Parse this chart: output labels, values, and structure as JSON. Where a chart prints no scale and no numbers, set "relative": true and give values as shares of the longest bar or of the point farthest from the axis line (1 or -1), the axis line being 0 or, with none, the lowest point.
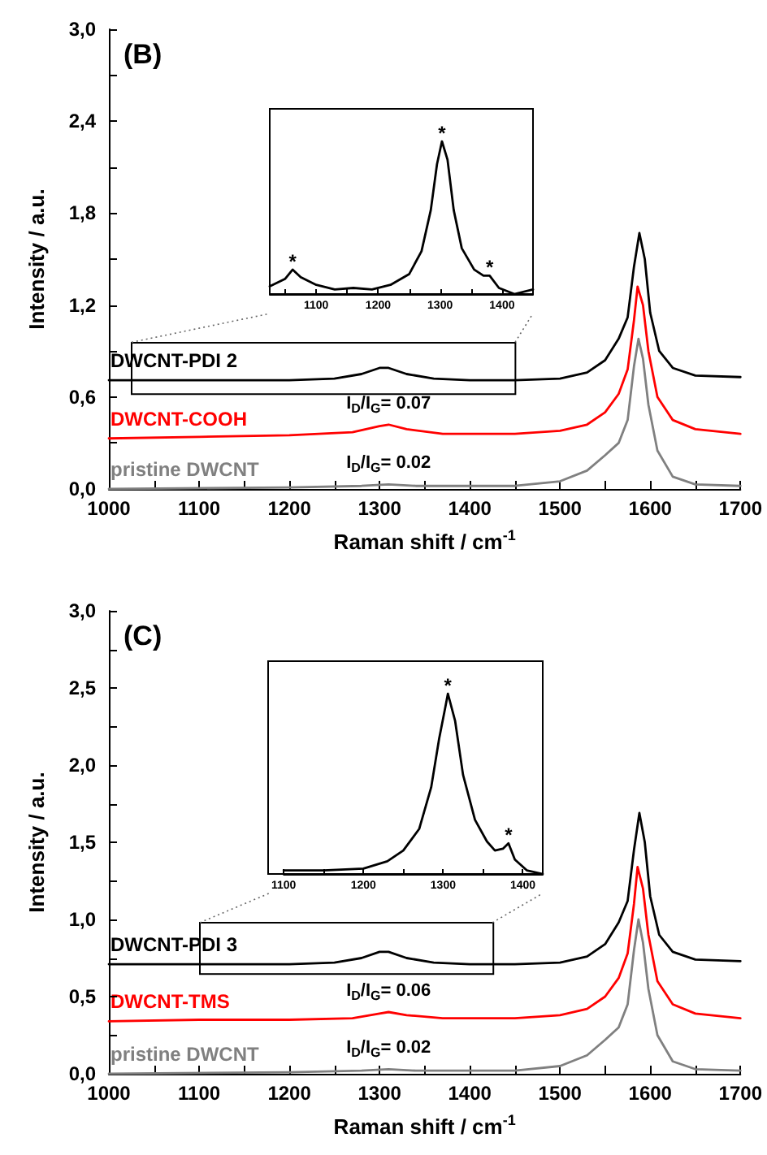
{
  "chart_data": [
    {
      "type": "line",
      "title": "(B)",
      "xlabel": "Raman shift / cm$^{-1}$",
      "ylabel": "Intensity / a.u.",
      "xlim": [
        1000,
        1700
      ],
      "xticks": [
        1000,
        {
          "value": 1050,
          "label": null
        },
        1100,
        {
          "value": 1150,
          "label": null
        },
        1200,
        {
          "value": 1250,
          "label": null
        },
        1300,
        {
          "value": 1350,
          "label": null
        },
        1400,
        {
          "value": 1450,
          "label": null
        },
        1500,
        {
          "value": 1550,
          "label": null
        },
        1600,
        {
          "value": 1650,
          "label": null
        },
        1700
      ],
      "ylim": [
        0,
        3
      ],
      "yticks": [
        {
          "value": 0,
          "label": "0,0"
        },
        {
          "value": 0.3,
          "label": null
        },
        {
          "value": 0.6,
          "label": "0,6"
        },
        {
          "value": 0.9,
          "label": null
        },
        {
          "value": 1.2,
          "label": "1,2"
        },
        {
          "value": 1.5,
          "label": null
        },
        {
          "value": 1.8,
          "label": "1,8"
        },
        {
          "value": 2.1,
          "label": null
        },
        {
          "value": 2.4,
          "label": "2,4"
        },
        {
          "value": 2.7,
          "label": null
        },
        {
          "value": 3,
          "label": "3,0"
        }
      ],
      "grid": false,
      "legend": false,
      "marker": "none",
      "line_style": "solid",
      "series": [
        {
          "name": "DWCNT-PDI 2",
          "color": "#000000",
          "x": [
            1000,
            1100,
            1200,
            1250,
            1280,
            1300,
            1310,
            1330,
            1360,
            1400,
            1450,
            1500,
            1530,
            1550,
            1565,
            1575,
            1582,
            1588,
            1594,
            1600,
            1610,
            1625,
            1650,
            1700
          ],
          "values": [
            0.71,
            0.71,
            0.71,
            0.72,
            0.75,
            0.79,
            0.79,
            0.75,
            0.72,
            0.71,
            0.71,
            0.72,
            0.76,
            0.84,
            0.98,
            1.12,
            1.45,
            1.67,
            1.5,
            1.15,
            0.9,
            0.79,
            0.74,
            0.73
          ]
        },
        {
          "name": "DWCNT-COOH",
          "color": "#ff0000",
          "x": [
            1000,
            1100,
            1200,
            1270,
            1300,
            1310,
            1330,
            1370,
            1450,
            1500,
            1530,
            1550,
            1565,
            1575,
            1582,
            1586,
            1592,
            1598,
            1608,
            1625,
            1650,
            1700
          ],
          "values": [
            0.33,
            0.34,
            0.35,
            0.37,
            0.41,
            0.42,
            0.39,
            0.36,
            0.36,
            0.38,
            0.42,
            0.5,
            0.62,
            0.78,
            1.1,
            1.32,
            1.2,
            0.9,
            0.6,
            0.45,
            0.39,
            0.36
          ]
        },
        {
          "name": "pristine DWCNT",
          "color": "#808080",
          "x": [
            1000,
            1200,
            1280,
            1310,
            1340,
            1450,
            1500,
            1530,
            1550,
            1565,
            1575,
            1582,
            1587,
            1592,
            1598,
            1608,
            1625,
            1650,
            1700
          ],
          "values": [
            0,
            0.01,
            0.02,
            0.03,
            0.02,
            0.02,
            0.05,
            0.12,
            0.22,
            0.3,
            0.45,
            0.8,
            0.98,
            0.85,
            0.55,
            0.25,
            0.08,
            0.03,
            0.02
          ]
        }
      ],
      "annotations": [
        {
          "text": "I$_{D}$/I$_{G}$= 0.07",
          "x": 1310,
          "y": 0.42
        },
        {
          "text": "I$_{D}$/I$_{G}$= 0.02",
          "x": 1310,
          "y": 0.03
        }
      ]
    },
    {
      "type": "line",
      "xlim": [
        1025,
        1450
      ],
      "xticks": [
        {
          "value": 1050,
          "label": null
        },
        1100,
        {
          "value": 1150,
          "label": null
        },
        1200,
        {
          "value": 1250,
          "label": null
        },
        1300,
        {
          "value": 1350,
          "label": null
        },
        1400
      ],
      "relative": true,
      "tick_labels": "x",
      "marker": "none",
      "line_style": "solid",
      "series": [
        {
          "color": "#000000",
          "x": [
            1025,
            1050,
            1062,
            1075,
            1100,
            1130,
            1160,
            1190,
            1220,
            1250,
            1270,
            1285,
            1295,
            1303,
            1312,
            1322,
            1335,
            1355,
            1370,
            1380,
            1395,
            1420,
            1450
          ],
          "values": [
            0.05,
            0.1,
            0.16,
            0.11,
            0.06,
            0.03,
            0.04,
            0.03,
            0.06,
            0.13,
            0.28,
            0.55,
            0.85,
            1,
            0.88,
            0.55,
            0.3,
            0.16,
            0.12,
            0.12,
            0.04,
            0,
            0.03
          ]
        }
      ],
      "annotations": [
        {
          "text": "*",
          "x": 1062,
          "y": 0.16
        },
        {
          "text": "*",
          "x": 1303,
          "y": 1
        },
        {
          "text": "*",
          "x": 1380,
          "y": 0.12
        }
      ]
    },
    {
      "type": "line",
      "title": "(C)",
      "xlabel": "Raman shift / cm$^{-1}$",
      "ylabel": "Intensity / a.u.",
      "xlim": [
        1000,
        1700
      ],
      "xticks": [
        1000,
        {
          "value": 1050,
          "label": null
        },
        1100,
        {
          "value": 1150,
          "label": null
        },
        1200,
        {
          "value": 1250,
          "label": null
        },
        1300,
        {
          "value": 1350,
          "label": null
        },
        1400,
        {
          "value": 1450,
          "label": null
        },
        1500,
        {
          "value": 1550,
          "label": null
        },
        1600,
        {
          "value": 1650,
          "label": null
        },
        1700
      ],
      "ylim": [
        0,
        3
      ],
      "yticks": [
        {
          "value": 0,
          "label": "0,0"
        },
        {
          "value": 0.25,
          "label": null
        },
        {
          "value": 0.5,
          "label": "0,5"
        },
        {
          "value": 0.75,
          "label": null
        },
        {
          "value": 1,
          "label": "1,0"
        },
        {
          "value": 1.25,
          "label": null
        },
        {
          "value": 1.5,
          "label": "1,5"
        },
        {
          "value": 1.75,
          "label": null
        },
        {
          "value": 2,
          "label": "2,0"
        },
        {
          "value": 2.25,
          "label": null
        },
        {
          "value": 2.5,
          "label": "2,5"
        },
        {
          "value": 2.75,
          "label": null
        },
        {
          "value": 3,
          "label": "3,0"
        }
      ],
      "grid": false,
      "legend": false,
      "marker": "none",
      "line_style": "solid",
      "series": [
        {
          "name": "DWCNT-PDI 3",
          "color": "#000000",
          "x": [
            1000,
            1100,
            1200,
            1250,
            1280,
            1300,
            1310,
            1330,
            1360,
            1400,
            1450,
            1500,
            1530,
            1550,
            1565,
            1575,
            1582,
            1588,
            1594,
            1600,
            1610,
            1625,
            1650,
            1700
          ],
          "values": [
            0.71,
            0.71,
            0.71,
            0.72,
            0.75,
            0.79,
            0.79,
            0.75,
            0.72,
            0.71,
            0.71,
            0.72,
            0.76,
            0.84,
            0.98,
            1.12,
            1.45,
            1.69,
            1.5,
            1.15,
            0.9,
            0.79,
            0.74,
            0.73
          ]
        },
        {
          "name": "DWCNT-TMS",
          "color": "#ff0000",
          "x": [
            1000,
            1100,
            1200,
            1270,
            1300,
            1310,
            1330,
            1370,
            1450,
            1500,
            1530,
            1550,
            1565,
            1575,
            1582,
            1586,
            1592,
            1598,
            1608,
            1625,
            1650,
            1700
          ],
          "values": [
            0.34,
            0.35,
            0.35,
            0.36,
            0.39,
            0.4,
            0.38,
            0.36,
            0.36,
            0.38,
            0.42,
            0.5,
            0.62,
            0.78,
            1.1,
            1.34,
            1.2,
            0.9,
            0.6,
            0.45,
            0.39,
            0.36
          ]
        },
        {
          "name": "pristine DWCNT",
          "color": "#808080",
          "x": [
            1000,
            1200,
            1280,
            1310,
            1340,
            1450,
            1500,
            1530,
            1550,
            1565,
            1575,
            1582,
            1587,
            1592,
            1598,
            1608,
            1625,
            1650,
            1700
          ],
          "values": [
            0,
            0.01,
            0.02,
            0.03,
            0.02,
            0.02,
            0.05,
            0.12,
            0.22,
            0.3,
            0.45,
            0.8,
            1,
            0.85,
            0.55,
            0.25,
            0.08,
            0.03,
            0.02
          ]
        }
      ],
      "annotations": [
        {
          "text": "I$_{D}$/I$_{G}$= 0.06",
          "x": 1310,
          "y": 0.4
        },
        {
          "text": "I$_{D}$/I$_{G}$= 0.02",
          "x": 1310,
          "y": 0.03
        }
      ]
    },
    {
      "type": "line",
      "xlim": [
        1100,
        1425
      ],
      "xticks": [
        1100,
        {
          "value": 1150,
          "label": null
        },
        1200,
        {
          "value": 1250,
          "label": null
        },
        1300,
        {
          "value": 1350,
          "label": null
        },
        1400
      ],
      "relative": true,
      "tick_labels": "x",
      "marker": "none",
      "line_style": "solid",
      "series": [
        {
          "color": "#000000",
          "x": [
            1100,
            1150,
            1200,
            1230,
            1250,
            1270,
            1285,
            1295,
            1303,
            1306,
            1315,
            1325,
            1340,
            1355,
            1365,
            1375,
            1382,
            1390,
            1405,
            1425
          ],
          "values": [
            0.02,
            0.02,
            0.03,
            0.07,
            0.13,
            0.25,
            0.48,
            0.75,
            0.93,
            1,
            0.85,
            0.55,
            0.3,
            0.18,
            0.13,
            0.14,
            0.17,
            0.08,
            0.02,
            0
          ]
        }
      ],
      "annotations": [
        {
          "text": "*",
          "x": 1306,
          "y": 1
        },
        {
          "text": "*",
          "x": 1382,
          "y": 0.17
        }
      ]
    }
  ]
}
